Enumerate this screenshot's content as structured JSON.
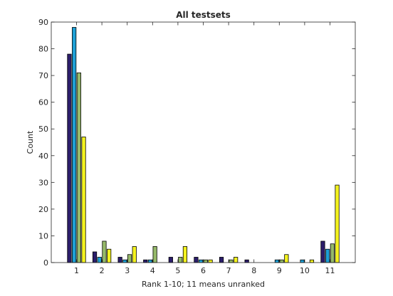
{
  "chart_data": {
    "type": "bar",
    "title": "All testsets",
    "xlabel": "Rank 1-10; 11 means unranked",
    "ylabel": "Count",
    "categories": [
      "1",
      "2",
      "3",
      "4",
      "5",
      "6",
      "7",
      "8",
      "9",
      "10",
      "11"
    ],
    "ylim": [
      0,
      90
    ],
    "yticks": [
      "0",
      "10",
      "20",
      "30",
      "40",
      "50",
      "60",
      "70",
      "80",
      "90"
    ],
    "grid": false,
    "legend": "none",
    "series": [
      {
        "color": "#2b1d6b",
        "values": [
          78,
          4,
          2,
          1,
          2,
          2,
          2,
          1,
          0,
          0,
          8
        ]
      },
      {
        "color": "#1ea0d6",
        "values": [
          88,
          2,
          1,
          1,
          0,
          1,
          0,
          0,
          1,
          1,
          5
        ]
      },
      {
        "color": "#96b96a",
        "values": [
          71,
          8,
          3,
          6,
          2,
          1,
          1,
          0,
          1,
          0,
          7
        ]
      },
      {
        "color": "#f4f31f",
        "values": [
          47,
          5,
          6,
          0,
          6,
          1,
          2,
          0,
          3,
          1,
          29
        ]
      }
    ]
  }
}
